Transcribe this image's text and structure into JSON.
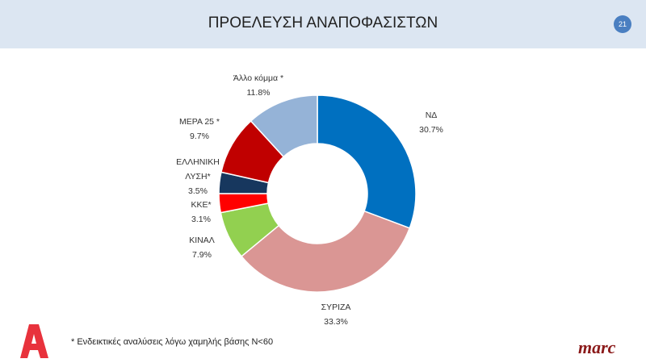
{
  "header": {
    "title": "ΠΡΟΕΛΕΥΣΗ ΑΝΑΠΟΦΑΣΙΣΤΩΝ",
    "page": "21"
  },
  "chart_data": {
    "type": "pie",
    "donut": true,
    "title": "ΠΡΟΕΛΕΥΣΗ ΑΝΑΠΟΦΑΣΙΣΤΩΝ",
    "slices": [
      {
        "label": "ΝΔ",
        "value": 30.7,
        "text": "30.7%",
        "color": "#0070c0"
      },
      {
        "label": "ΣΥΡΙΖΑ",
        "value": 33.3,
        "text": "33.3%",
        "color": "#da9694"
      },
      {
        "label": "ΚΙΝΑΛ",
        "value": 7.9,
        "text": "7.9%",
        "color": "#92d050"
      },
      {
        "label": "ΚΚΕ*",
        "value": 3.1,
        "text": "3.1%",
        "color": "#ff0000"
      },
      {
        "label": "ΕΛΛΗΝΙΚΗ ΛΥΣΗ*",
        "value": 3.5,
        "text": "3.5%",
        "color": "#17375e"
      },
      {
        "label": "ΜΕΡΑ 25 *",
        "value": 9.7,
        "text": "9.7%",
        "color": "#c00000"
      },
      {
        "label": "Άλλο κόμμα *",
        "value": 11.8,
        "text": "11.8%",
        "color": "#95b3d7"
      }
    ]
  },
  "footer": {
    "note": "* Ενδεικτικές αναλύσεις λόγω χαμηλής βάσης N<60",
    "logo_right": "marc",
    "logo_left": "A"
  }
}
